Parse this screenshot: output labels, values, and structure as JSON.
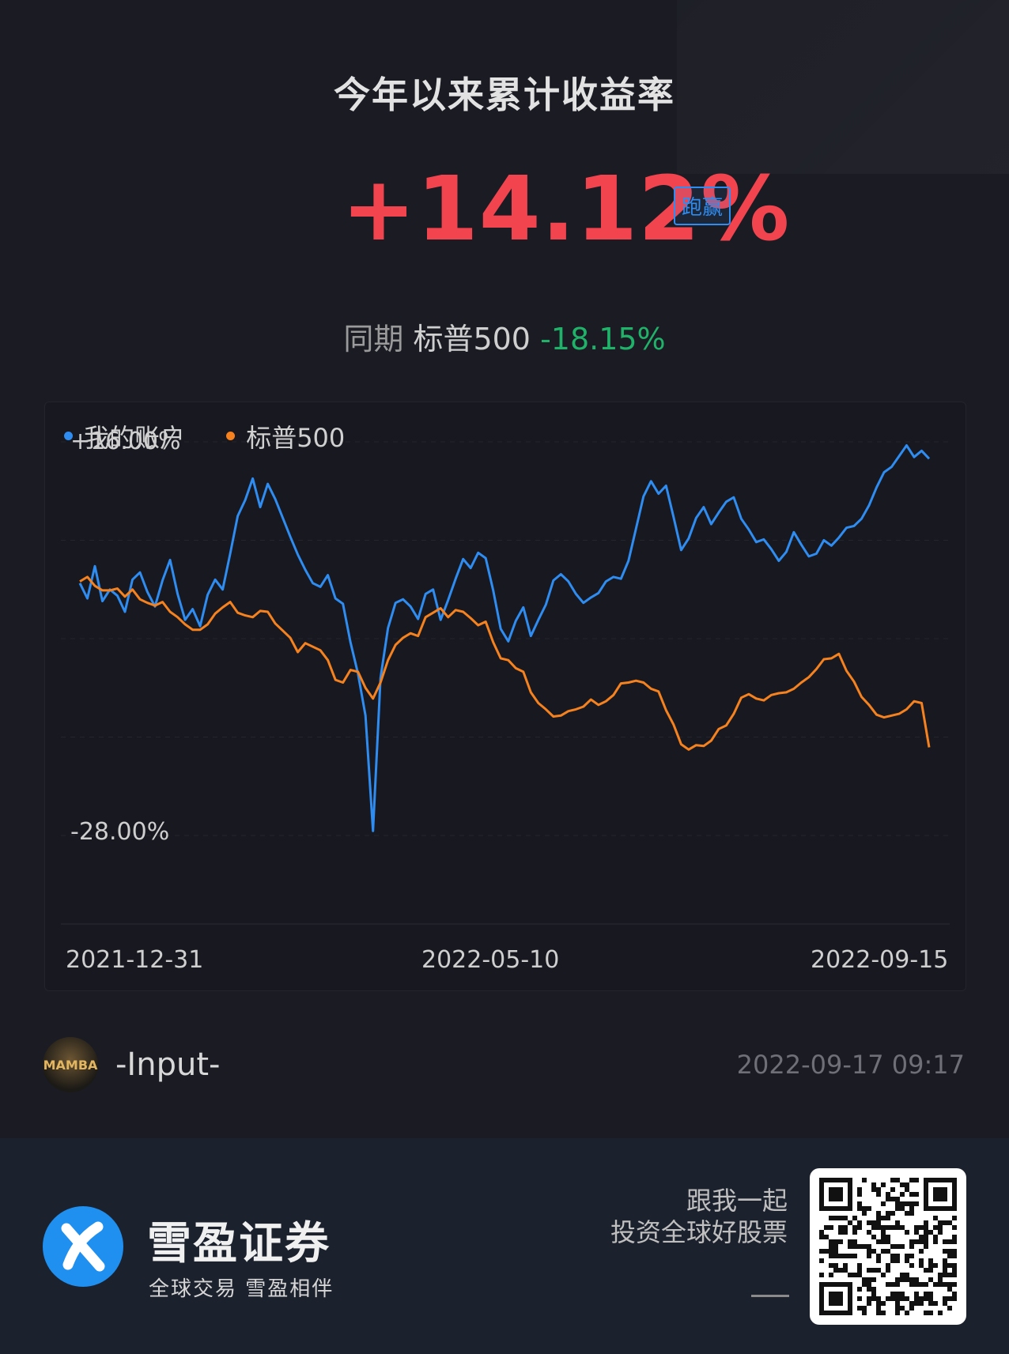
{
  "header": {
    "title": "今年以来累计收益率",
    "return_value": "+14.12%",
    "badge": "跑赢",
    "compare_prefix": "同期",
    "benchmark_name": "标普500",
    "benchmark_value": "-18.15%"
  },
  "colors": {
    "positive": "#f2444e",
    "negative": "#21b26a",
    "account": "#2f8cf0",
    "benchmark": "#f5821f"
  },
  "chart_data": {
    "type": "line",
    "x_start": "2021-12-31",
    "x_end": "2022-09-15",
    "x_ticks": [
      "2021-12-31",
      "2022-05-10",
      "2022-09-15"
    ],
    "y_ticks": [
      "+16.00%",
      "-28.00%"
    ],
    "ylim": [
      -28,
      16
    ],
    "legend": "top-left",
    "series": [
      {
        "name": "我的账户",
        "color": "#2f8cf0",
        "values": [
          0.2,
          -1.5,
          2.1,
          -1.8,
          -0.5,
          -1.2,
          -3.0,
          0.6,
          1.4,
          -0.8,
          -2.4,
          0.5,
          2.8,
          -1.0,
          -3.9,
          -2.7,
          -4.6,
          -1.1,
          0.6,
          -0.5,
          3.5,
          7.7,
          9.5,
          11.9,
          8.7,
          11.3,
          9.6,
          7.5,
          5.4,
          3.4,
          1.7,
          0.2,
          -0.2,
          1.1,
          -1.5,
          -2.1,
          -6.4,
          -9.9,
          -14.6,
          -27.5,
          -10.4,
          -4.8,
          -2.0,
          -1.6,
          -2.4,
          -3.8,
          -1.0,
          -0.5,
          -3.9,
          -1.7,
          0.7,
          2.9,
          1.9,
          3.6,
          3.0,
          -0.6,
          -4.9,
          -6.3,
          -4.0,
          -2.5,
          -5.7,
          -3.9,
          -2.2,
          0.5,
          1.2,
          0.4,
          -1.0,
          -2.0,
          -1.4,
          -0.9,
          0.4,
          0.9,
          0.7,
          2.7,
          6.3,
          9.9,
          11.6,
          10.2,
          11.1,
          7.6,
          3.9,
          5.2,
          7.5,
          8.7,
          6.8,
          8.1,
          9.3,
          9.8,
          7.4,
          6.2,
          4.8,
          5.1,
          4.0,
          2.7,
          3.7,
          5.9,
          4.5,
          3.2,
          3.5,
          5.0,
          4.4,
          5.3,
          6.4,
          6.6,
          7.4,
          8.9,
          10.9,
          12.6,
          13.2,
          14.4,
          15.6,
          14.3,
          15.0,
          14.12
        ]
      },
      {
        "name": "标普500",
        "color": "#f5821f",
        "values": [
          0.4,
          0.9,
          -0.1,
          -0.6,
          -0.6,
          -0.4,
          -1.3,
          -0.5,
          -1.6,
          -2.0,
          -2.3,
          -1.9,
          -3.0,
          -3.6,
          -4.4,
          -5.0,
          -5.0,
          -4.4,
          -3.2,
          -2.5,
          -1.9,
          -3.1,
          -3.4,
          -3.6,
          -2.9,
          -3.0,
          -4.3,
          -5.1,
          -5.9,
          -7.5,
          -6.5,
          -6.9,
          -7.3,
          -8.4,
          -10.6,
          -10.9,
          -9.5,
          -9.7,
          -11.5,
          -12.7,
          -10.9,
          -8.4,
          -6.7,
          -5.9,
          -5.4,
          -5.7,
          -3.6,
          -3.1,
          -2.6,
          -3.6,
          -2.8,
          -3.0,
          -3.7,
          -4.5,
          -4.1,
          -6.4,
          -8.2,
          -8.4,
          -9.3,
          -9.7,
          -12.0,
          -13.2,
          -13.9,
          -14.7,
          -14.6,
          -14.1,
          -13.9,
          -13.6,
          -12.8,
          -13.4,
          -13.0,
          -12.3,
          -11.0,
          -10.9,
          -10.7,
          -10.9,
          -11.6,
          -11.9,
          -14.0,
          -15.6,
          -17.8,
          -18.4,
          -17.9,
          -18.0,
          -17.4,
          -16.1,
          -15.7,
          -14.4,
          -12.6,
          -12.2,
          -12.7,
          -12.9,
          -12.3,
          -12.1,
          -12.0,
          -11.6,
          -10.9,
          -10.3,
          -9.4,
          -8.3,
          -8.2,
          -7.7,
          -9.6,
          -10.8,
          -12.5,
          -13.4,
          -14.5,
          -14.8,
          -14.6,
          -14.4,
          -13.9,
          -13.0,
          -13.2,
          -18.15
        ]
      }
    ]
  },
  "user": {
    "avatar_text": "MAMBA",
    "name": "-Input-",
    "timestamp": "2022-09-17 09:17"
  },
  "footer": {
    "brand_name": "雪盈证券",
    "slogan": "全球交易  雪盈相伴",
    "invite_line1": "跟我一起",
    "invite_line2": "投资全球好股票"
  }
}
